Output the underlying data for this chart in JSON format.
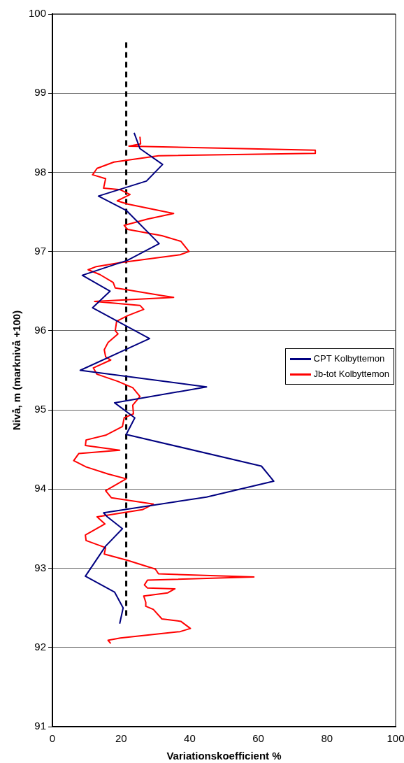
{
  "chart_data": {
    "type": "line",
    "xlabel": "Variationskoefficient %",
    "ylabel": "Nivå, m (marknivå +100)",
    "xlim": [
      0,
      100
    ],
    "xticks": [
      0,
      20,
      40,
      60,
      80,
      100
    ],
    "ylim": [
      91,
      100
    ],
    "yticks": [
      91,
      92,
      93,
      94,
      95,
      96,
      97,
      98,
      99,
      100
    ],
    "grid": "y",
    "legend": "right",
    "marker": "none",
    "series": [
      {
        "name": "CPT Kolbyttemon",
        "color": "#000080",
        "x": [
          23.8,
          25.5,
          32.1,
          27.4,
          13.4,
          21.5,
          31.1,
          21.9,
          8.7,
          16.8,
          11.7,
          28.3,
          8.1,
          44.9,
          18.1,
          24.0,
          21.5,
          60.9,
          64.5,
          44.9,
          14.9,
          16.0,
          20.4,
          15.5,
          9.6,
          18.1,
          20.6,
          19.6
        ],
        "values": [
          98.5,
          98.3,
          98.1,
          97.89,
          97.7,
          97.52,
          97.1,
          96.89,
          96.7,
          96.5,
          96.29,
          95.9,
          95.5,
          95.29,
          95.09,
          94.9,
          94.69,
          94.29,
          94.1,
          93.9,
          93.7,
          93.65,
          93.5,
          93.28,
          92.9,
          92.7,
          92.5,
          92.3
        ]
      },
      {
        "name": "Jb-tot Kolbyttemon",
        "color": "#ff0000",
        "x": [
          25.5,
          25.7,
          22.3,
          76.6,
          76.6,
          30.9,
          17.9,
          13.0,
          11.7,
          15.5,
          14.9,
          19.8,
          22.6,
          18.9,
          21.9,
          35.3,
          27.7,
          20.9,
          21.9,
          31.9,
          37.4,
          39.8,
          37.2,
          19.8,
          12.8,
          10.4,
          13.8,
          17.7,
          18.3,
          21.3,
          31.1,
          35.3,
          12.3,
          25.5,
          26.6,
          21.9,
          18.7,
          18.3,
          19.1,
          16.2,
          15.1,
          15.5,
          17.0,
          11.9,
          13.0,
          19.1,
          23.4,
          25.5,
          23.4,
          23.6,
          20.9,
          20.4,
          15.5,
          9.8,
          9.6,
          19.6,
          7.7,
          6.2,
          9.8,
          16.2,
          21.5,
          15.5,
          17.2,
          29.4,
          26.2,
          13.0,
          15.3,
          9.6,
          9.8,
          15.5,
          15.1,
          21.9,
          30.0,
          30.9,
          58.7,
          27.7,
          26.8,
          27.7,
          35.7,
          33.6,
          26.6,
          27.2,
          27.2,
          29.4,
          31.9,
          37.4,
          40.2,
          37.2,
          19.8,
          16.2,
          17.0
        ],
        "values": [
          98.45,
          98.36,
          98.33,
          98.28,
          98.24,
          98.21,
          98.13,
          98.05,
          97.97,
          97.92,
          97.8,
          97.78,
          97.72,
          97.64,
          97.6,
          97.48,
          97.41,
          97.33,
          97.28,
          97.2,
          97.13,
          97.0,
          96.96,
          96.86,
          96.81,
          96.77,
          96.71,
          96.61,
          96.54,
          96.52,
          96.45,
          96.42,
          96.37,
          96.32,
          96.27,
          96.19,
          96.12,
          96.0,
          95.96,
          95.85,
          95.76,
          95.67,
          95.63,
          95.53,
          95.45,
          95.36,
          95.28,
          95.17,
          95.06,
          94.95,
          94.9,
          94.79,
          94.68,
          94.62,
          94.55,
          94.49,
          94.45,
          94.36,
          94.28,
          94.19,
          94.13,
          93.98,
          93.89,
          93.81,
          93.74,
          93.65,
          93.56,
          93.42,
          93.35,
          93.26,
          93.18,
          93.1,
          92.99,
          92.93,
          92.89,
          92.85,
          92.79,
          92.75,
          92.74,
          92.69,
          92.65,
          92.57,
          92.52,
          92.48,
          92.36,
          92.33,
          92.24,
          92.2,
          92.12,
          92.09,
          92.05
        ]
      },
      {
        "type": "line",
        "color": "#000000",
        "line_style": "dashed",
        "x": [
          21.5,
          21.5
        ],
        "values": [
          92.4,
          99.65
        ]
      }
    ]
  }
}
